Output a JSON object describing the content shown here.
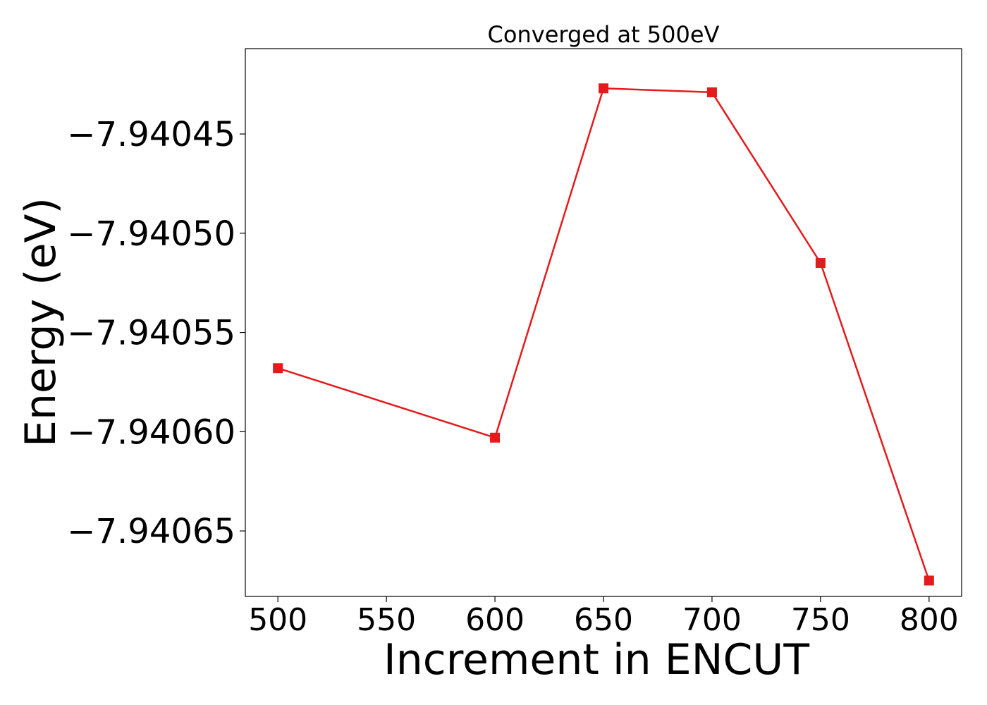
{
  "chart_data": {
    "type": "line",
    "title": "Converged at 500eV",
    "xlabel": "Increment in ENCUT",
    "ylabel": "Energy (eV)",
    "x": [
      500,
      600,
      650,
      700,
      750,
      800
    ],
    "series": [
      {
        "values": [
          -7.940568,
          -7.940603,
          -7.940427,
          -7.940429,
          -7.940515,
          -7.940675
        ],
        "color": "#e41a1c",
        "marker": "square"
      }
    ],
    "xlim": [
      485,
      815
    ],
    "ylim": [
      -7.940683,
      -7.940407
    ],
    "xticks": [
      500,
      550,
      600,
      650,
      700,
      750,
      800
    ],
    "xtick_labels": [
      "500",
      "550",
      "600",
      "650",
      "700",
      "750",
      "800"
    ],
    "yticks": [
      -7.94065,
      -7.9406,
      -7.94055,
      -7.9405,
      -7.94045
    ],
    "ytick_labels": [
      "−7.94065",
      "−7.94060",
      "−7.94055",
      "−7.94050",
      "−7.94045"
    ],
    "grid": false,
    "legend": "none"
  }
}
